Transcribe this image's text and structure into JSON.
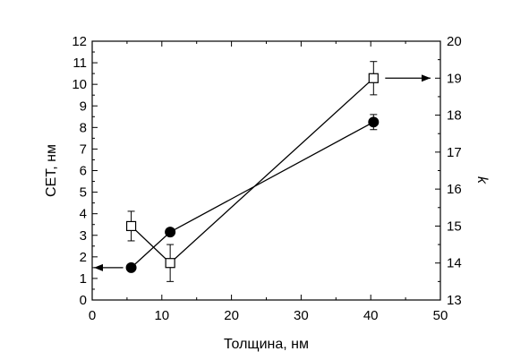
{
  "chart_data": {
    "type": "line",
    "xlabel": "Толщина, нм",
    "ylabel_left": "CET, нм",
    "ylabel_right": "k",
    "xlim": [
      0,
      50
    ],
    "ylim_left": [
      0,
      12
    ],
    "ylim_right": [
      13,
      20
    ],
    "x_ticks": [
      0,
      10,
      20,
      30,
      40,
      50
    ],
    "y_left_ticks": [
      0,
      1,
      2,
      3,
      4,
      5,
      6,
      7,
      8,
      9,
      10,
      11,
      12
    ],
    "y_right_ticks": [
      13,
      14,
      15,
      16,
      17,
      18,
      19,
      20
    ],
    "grid": false,
    "legend": "none",
    "series": [
      {
        "axis": "left",
        "marker": "filled-circle",
        "x": [
          5.6,
          11.2,
          40.4
        ],
        "y": [
          1.5,
          3.15,
          8.25
        ],
        "err": [
          0,
          0,
          0.35
        ]
      },
      {
        "axis": "right",
        "marker": "open-square",
        "x": [
          5.6,
          11.2,
          40.4
        ],
        "y": [
          15.0,
          14.0,
          19.0
        ],
        "err": [
          0.4,
          0.5,
          0.45
        ]
      }
    ],
    "annotations": [
      {
        "type": "arrow",
        "points_to": "left",
        "series_index": 0
      },
      {
        "type": "arrow",
        "points_to": "right",
        "series_index": 1
      }
    ]
  }
}
